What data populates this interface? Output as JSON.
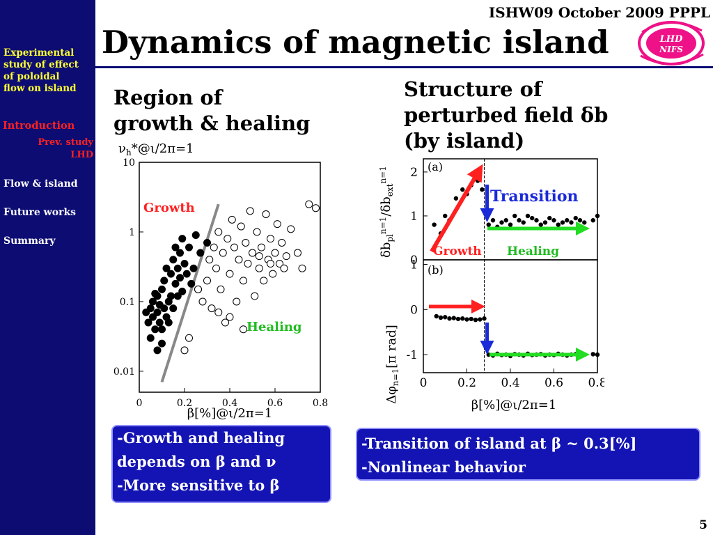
{
  "header": {
    "conference": "ISHW09 October 2009 PPPL",
    "title": "Dynamics of magnetic island",
    "logo_text": "LHD NIFS"
  },
  "sidebar": {
    "top_lines": [
      "Experimental",
      "study of effect",
      "of poloidal",
      "flow on island"
    ],
    "introduction": "Introduction",
    "prev_lines": [
      "Prev. study",
      "LHD"
    ],
    "flow": "Flow & island",
    "future": "Future works",
    "summary": "Summary"
  },
  "left": {
    "heading_lines": [
      "Region of",
      "growth & healing"
    ],
    "nu_label": "νh*@ι/2π=1",
    "x_label": "β[%]@ι/2π=1",
    "growth_label": "Growth",
    "healing_label": "Healing",
    "box_lines": [
      "-Growth and healing",
      "depends on β and ν",
      "-More sensitive to β"
    ]
  },
  "right": {
    "heading_lines": [
      "Structure of",
      "perturbed field δb",
      "(by island)"
    ],
    "panel_a": "(a)",
    "panel_b": "(b)",
    "transition_label": "Transition",
    "growth_label": "Growth",
    "healing_label": "Healing",
    "ylabel_top": "δbpln=1/δbextn=1",
    "ylabel_bottom": "Δφn=1[π rad]",
    "x_label": "β[%]@ι/2π=1",
    "box_lines": [
      "-Transition of island at β ~ 0.3[%]",
      "-Nonlinear behavior"
    ]
  },
  "page_number": "5",
  "colors": {
    "sidebar": "#0c0c73",
    "box": "#1414b4",
    "accent_yellow": "#ffff33",
    "red": "#ff2020",
    "green": "#22dd22",
    "arrow_blue": "#1a2ad8"
  },
  "chart_data": [
    {
      "type": "scatter",
      "xlabel": "β[%]@ι/2π=1",
      "ylabel": "νh*@ι/2π=1",
      "x_ticks": [
        "0",
        "0.2",
        "0.4",
        "0.6",
        "0.8"
      ],
      "y_ticks": [
        "10",
        "1",
        "0.1",
        "0.01"
      ],
      "xlim": [
        0,
        0.8
      ],
      "ylim": [
        0.005,
        10
      ],
      "y_scale": "log",
      "series": [
        {
          "name": "Growth",
          "marker": "filled",
          "points": [
            [
              0.03,
              0.07
            ],
            [
              0.04,
              0.05
            ],
            [
              0.05,
              0.08
            ],
            [
              0.05,
              0.03
            ],
            [
              0.06,
              0.06
            ],
            [
              0.06,
              0.1
            ],
            [
              0.07,
              0.04
            ],
            [
              0.07,
              0.13
            ],
            [
              0.08,
              0.07
            ],
            [
              0.08,
              0.02
            ],
            [
              0.09,
              0.09
            ],
            [
              0.09,
              0.05
            ],
            [
              0.1,
              0.15
            ],
            [
              0.1,
              0.04
            ],
            [
              0.11,
              0.08
            ],
            [
              0.11,
              0.2
            ],
            [
              0.12,
              0.06
            ],
            [
              0.12,
              0.3
            ],
            [
              0.13,
              0.1
            ],
            [
              0.13,
              0.05
            ],
            [
              0.14,
              0.25
            ],
            [
              0.14,
              0.12
            ],
            [
              0.15,
              0.4
            ],
            [
              0.15,
              0.08
            ],
            [
              0.16,
              0.18
            ],
            [
              0.16,
              0.6
            ],
            [
              0.17,
              0.3
            ],
            [
              0.17,
              0.12
            ],
            [
              0.18,
              0.5
            ],
            [
              0.18,
              0.22
            ],
            [
              0.19,
              0.8
            ],
            [
              0.19,
              0.14
            ],
            [
              0.2,
              0.35
            ],
            [
              0.21,
              0.25
            ],
            [
              0.22,
              0.6
            ],
            [
              0.23,
              0.18
            ],
            [
              0.25,
              0.9
            ],
            [
              0.27,
              0.5
            ],
            [
              0.3,
              0.7
            ],
            [
              0.24,
              0.3
            ],
            [
              0.26,
              0.15
            ],
            [
              0.08,
              0.12
            ],
            [
              0.1,
              0.025
            ]
          ]
        },
        {
          "name": "Healing",
          "marker": "open",
          "points": [
            [
              0.2,
              0.02
            ],
            [
              0.22,
              0.03
            ],
            [
              0.26,
              0.15
            ],
            [
              0.28,
              0.1
            ],
            [
              0.3,
              0.2
            ],
            [
              0.31,
              0.4
            ],
            [
              0.32,
              0.08
            ],
            [
              0.33,
              0.6
            ],
            [
              0.34,
              0.3
            ],
            [
              0.35,
              1.0
            ],
            [
              0.36,
              0.15
            ],
            [
              0.37,
              0.5
            ],
            [
              0.38,
              0.05
            ],
            [
              0.39,
              0.8
            ],
            [
              0.4,
              0.25
            ],
            [
              0.41,
              1.5
            ],
            [
              0.42,
              0.6
            ],
            [
              0.43,
              0.1
            ],
            [
              0.44,
              0.4
            ],
            [
              0.45,
              1.2
            ],
            [
              0.46,
              0.2
            ],
            [
              0.47,
              0.7
            ],
            [
              0.48,
              0.35
            ],
            [
              0.49,
              2.0
            ],
            [
              0.5,
              0.5
            ],
            [
              0.51,
              0.12
            ],
            [
              0.52,
              1.0
            ],
            [
              0.53,
              0.3
            ],
            [
              0.54,
              0.6
            ],
            [
              0.55,
              0.2
            ],
            [
              0.56,
              1.8
            ],
            [
              0.57,
              0.4
            ],
            [
              0.58,
              0.8
            ],
            [
              0.59,
              0.25
            ],
            [
              0.6,
              0.5
            ],
            [
              0.61,
              1.3
            ],
            [
              0.62,
              0.35
            ],
            [
              0.63,
              0.7
            ],
            [
              0.64,
              0.3
            ],
            [
              0.65,
              0.45
            ],
            [
              0.67,
              1.1
            ],
            [
              0.7,
              0.5
            ],
            [
              0.72,
              0.3
            ],
            [
              0.75,
              2.5
            ],
            [
              0.78,
              2.2
            ],
            [
              0.46,
              0.04
            ],
            [
              0.4,
              0.06
            ],
            [
              0.35,
              0.07
            ],
            [
              0.53,
              0.45
            ],
            [
              0.58,
              0.35
            ]
          ]
        }
      ],
      "trend_line": [
        [
          0.1,
          0.007
        ],
        [
          0.35,
          2.5
        ]
      ]
    },
    {
      "type": "scatter",
      "panel": "(a)",
      "xlabel": "",
      "ylabel": "δbpln=1/δbextn=1",
      "x_ticks": [
        "0",
        "0.2",
        "0.4",
        "0.6",
        "0.8"
      ],
      "y_ticks": [
        "2",
        "1",
        "0"
      ],
      "xlim": [
        0,
        0.8
      ],
      "ylim": [
        0,
        2.3
      ],
      "transition_x": 0.28,
      "points": [
        [
          0.05,
          0.8
        ],
        [
          0.08,
          0.6
        ],
        [
          0.1,
          1.0
        ],
        [
          0.12,
          0.9
        ],
        [
          0.15,
          1.4
        ],
        [
          0.18,
          1.6
        ],
        [
          0.2,
          1.5
        ],
        [
          0.22,
          1.7
        ],
        [
          0.25,
          1.8
        ],
        [
          0.27,
          1.6
        ],
        [
          0.3,
          0.8
        ],
        [
          0.32,
          0.9
        ],
        [
          0.34,
          0.75
        ],
        [
          0.36,
          0.85
        ],
        [
          0.38,
          0.9
        ],
        [
          0.4,
          0.8
        ],
        [
          0.42,
          1.0
        ],
        [
          0.44,
          0.9
        ],
        [
          0.46,
          0.85
        ],
        [
          0.48,
          1.0
        ],
        [
          0.5,
          0.95
        ],
        [
          0.52,
          0.9
        ],
        [
          0.54,
          0.8
        ],
        [
          0.56,
          0.85
        ],
        [
          0.58,
          0.95
        ],
        [
          0.6,
          0.9
        ],
        [
          0.62,
          0.8
        ],
        [
          0.64,
          0.85
        ],
        [
          0.66,
          0.9
        ],
        [
          0.68,
          0.85
        ],
        [
          0.7,
          0.95
        ],
        [
          0.72,
          0.9
        ],
        [
          0.74,
          0.85
        ],
        [
          0.78,
          0.9
        ],
        [
          0.8,
          1.0
        ]
      ]
    },
    {
      "type": "scatter",
      "panel": "(b)",
      "xlabel": "β[%]@ι/2π=1",
      "ylabel": "Δφn=1[π rad]",
      "x_ticks": [
        "0",
        "0.2",
        "0.4",
        "0.6",
        "0.8"
      ],
      "y_ticks": [
        "1",
        "0",
        "-1"
      ],
      "xlim": [
        0,
        0.8
      ],
      "ylim": [
        -1.4,
        1.1
      ],
      "transition_x": 0.28,
      "points": [
        [
          0.06,
          -0.15
        ],
        [
          0.08,
          -0.18
        ],
        [
          0.1,
          -0.17
        ],
        [
          0.12,
          -0.2
        ],
        [
          0.14,
          -0.19
        ],
        [
          0.16,
          -0.21
        ],
        [
          0.18,
          -0.2
        ],
        [
          0.2,
          -0.22
        ],
        [
          0.22,
          -0.21
        ],
        [
          0.24,
          -0.23
        ],
        [
          0.26,
          -0.22
        ],
        [
          0.28,
          -0.2
        ],
        [
          0.3,
          -1.0
        ],
        [
          0.32,
          -1.02
        ],
        [
          0.34,
          -0.98
        ],
        [
          0.36,
          -1.01
        ],
        [
          0.38,
          -1.0
        ],
        [
          0.4,
          -1.03
        ],
        [
          0.42,
          -0.99
        ],
        [
          0.44,
          -1.0
        ],
        [
          0.46,
          -1.02
        ],
        [
          0.48,
          -0.98
        ],
        [
          0.5,
          -1.01
        ],
        [
          0.52,
          -1.0
        ],
        [
          0.54,
          -0.99
        ],
        [
          0.56,
          -1.02
        ],
        [
          0.58,
          -1.0
        ],
        [
          0.6,
          -1.01
        ],
        [
          0.62,
          -0.98
        ],
        [
          0.64,
          -1.0
        ],
        [
          0.66,
          -1.02
        ],
        [
          0.68,
          -1.0
        ],
        [
          0.7,
          -0.99
        ],
        [
          0.72,
          -1.01
        ],
        [
          0.74,
          -1.0
        ],
        [
          0.78,
          -0.99
        ],
        [
          0.8,
          -1.0
        ]
      ]
    }
  ]
}
